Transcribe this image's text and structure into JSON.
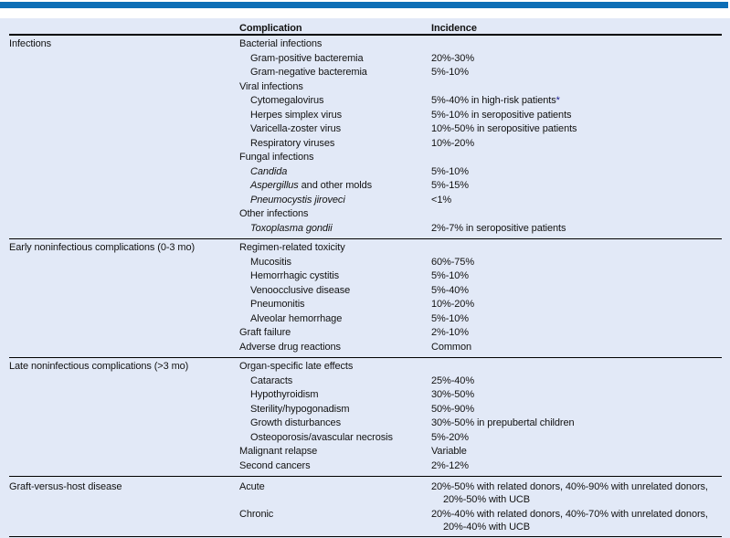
{
  "page": {
    "accent_bar_color": "#0e6fb6",
    "panel_background": "#e2e9f7",
    "rule_color": "#000000",
    "footnote_marker_color": "#1b1b8f"
  },
  "table": {
    "headers": {
      "complication": "Complication",
      "incidence": "Incidence"
    },
    "sections": [
      {
        "category": "Infections",
        "rows": [
          {
            "ind": 0,
            "t": "Bacterial infections",
            "inc": ""
          },
          {
            "ind": 1,
            "t": "Gram-positive bacteremia",
            "inc": "20%-30%"
          },
          {
            "ind": 1,
            "t": "Gram-negative bacteremia",
            "inc": "5%-10%"
          },
          {
            "ind": 0,
            "t": "Viral infections",
            "inc": ""
          },
          {
            "ind": 1,
            "t": "Cytomegalovirus",
            "inc": "5%-40% in high-risk patients",
            "mark": "*"
          },
          {
            "ind": 1,
            "t": "Herpes simplex virus",
            "inc": "5%-10% in seropositive patients"
          },
          {
            "ind": 1,
            "t": "Varicella-zoster virus",
            "inc": "10%-50% in seropositive patients"
          },
          {
            "ind": 1,
            "t": "Respiratory viruses",
            "inc": "10%-20%"
          },
          {
            "ind": 0,
            "t": "Fungal infections",
            "inc": ""
          },
          {
            "ind": 1,
            "it": "Candida",
            "inc": "5%-10%"
          },
          {
            "ind": 1,
            "it": "Aspergillus",
            "t": " and other molds",
            "inc": "5%-15%"
          },
          {
            "ind": 1,
            "it": "Pneumocystis jiroveci",
            "inc": "<1%"
          },
          {
            "ind": 0,
            "t": "Other infections",
            "inc": ""
          },
          {
            "ind": 1,
            "it": "Toxoplasma gondii",
            "inc": "2%-7% in seropositive patients"
          }
        ]
      },
      {
        "category": "Early noninfectious complications (0-3 mo)",
        "rows": [
          {
            "ind": 0,
            "t": "Regimen-related toxicity",
            "inc": ""
          },
          {
            "ind": 1,
            "t": "Mucositis",
            "inc": "60%-75%"
          },
          {
            "ind": 1,
            "t": "Hemorrhagic cystitis",
            "inc": "5%-10%"
          },
          {
            "ind": 1,
            "t": "Venoocclusive disease",
            "inc": "5%-40%"
          },
          {
            "ind": 1,
            "t": "Pneumonitis",
            "inc": "10%-20%"
          },
          {
            "ind": 1,
            "t": "Alveolar hemorrhage",
            "inc": "5%-10%"
          },
          {
            "ind": 0,
            "t": "Graft failure",
            "inc": "2%-10%"
          },
          {
            "ind": 0,
            "t": "Adverse drug reactions",
            "inc": "Common"
          }
        ]
      },
      {
        "category": "Late noninfectious complications (>3 mo)",
        "rows": [
          {
            "ind": 0,
            "t": "Organ-specific late effects",
            "inc": ""
          },
          {
            "ind": 1,
            "t": "Cataracts",
            "inc": "25%-40%"
          },
          {
            "ind": 1,
            "t": "Hypothyroidism",
            "inc": "30%-50%"
          },
          {
            "ind": 1,
            "t": "Sterility/hypogonadism",
            "inc": "50%-90%"
          },
          {
            "ind": 1,
            "t": "Growth disturbances",
            "inc": "30%-50% in prepubertal children"
          },
          {
            "ind": 1,
            "t": "Osteoporosis/avascular necrosis",
            "inc": "5%-20%"
          },
          {
            "ind": 0,
            "t": "Malignant relapse",
            "inc": "Variable"
          },
          {
            "ind": 0,
            "t": "Second cancers",
            "inc": "2%-12%"
          }
        ]
      },
      {
        "category": "Graft-versus-host disease",
        "rows": [
          {
            "ind": 0,
            "t": "Acute",
            "inc": "20%-50% with related donors, 40%-90% with unrelated donors,",
            "inc2": "20%-50% with UCB"
          },
          {
            "ind": 0,
            "t": "Chronic",
            "inc": "20%-40% with related donors, 40%-70% with unrelated donors,",
            "inc2": "20%-40% with UCB"
          }
        ]
      }
    ]
  }
}
